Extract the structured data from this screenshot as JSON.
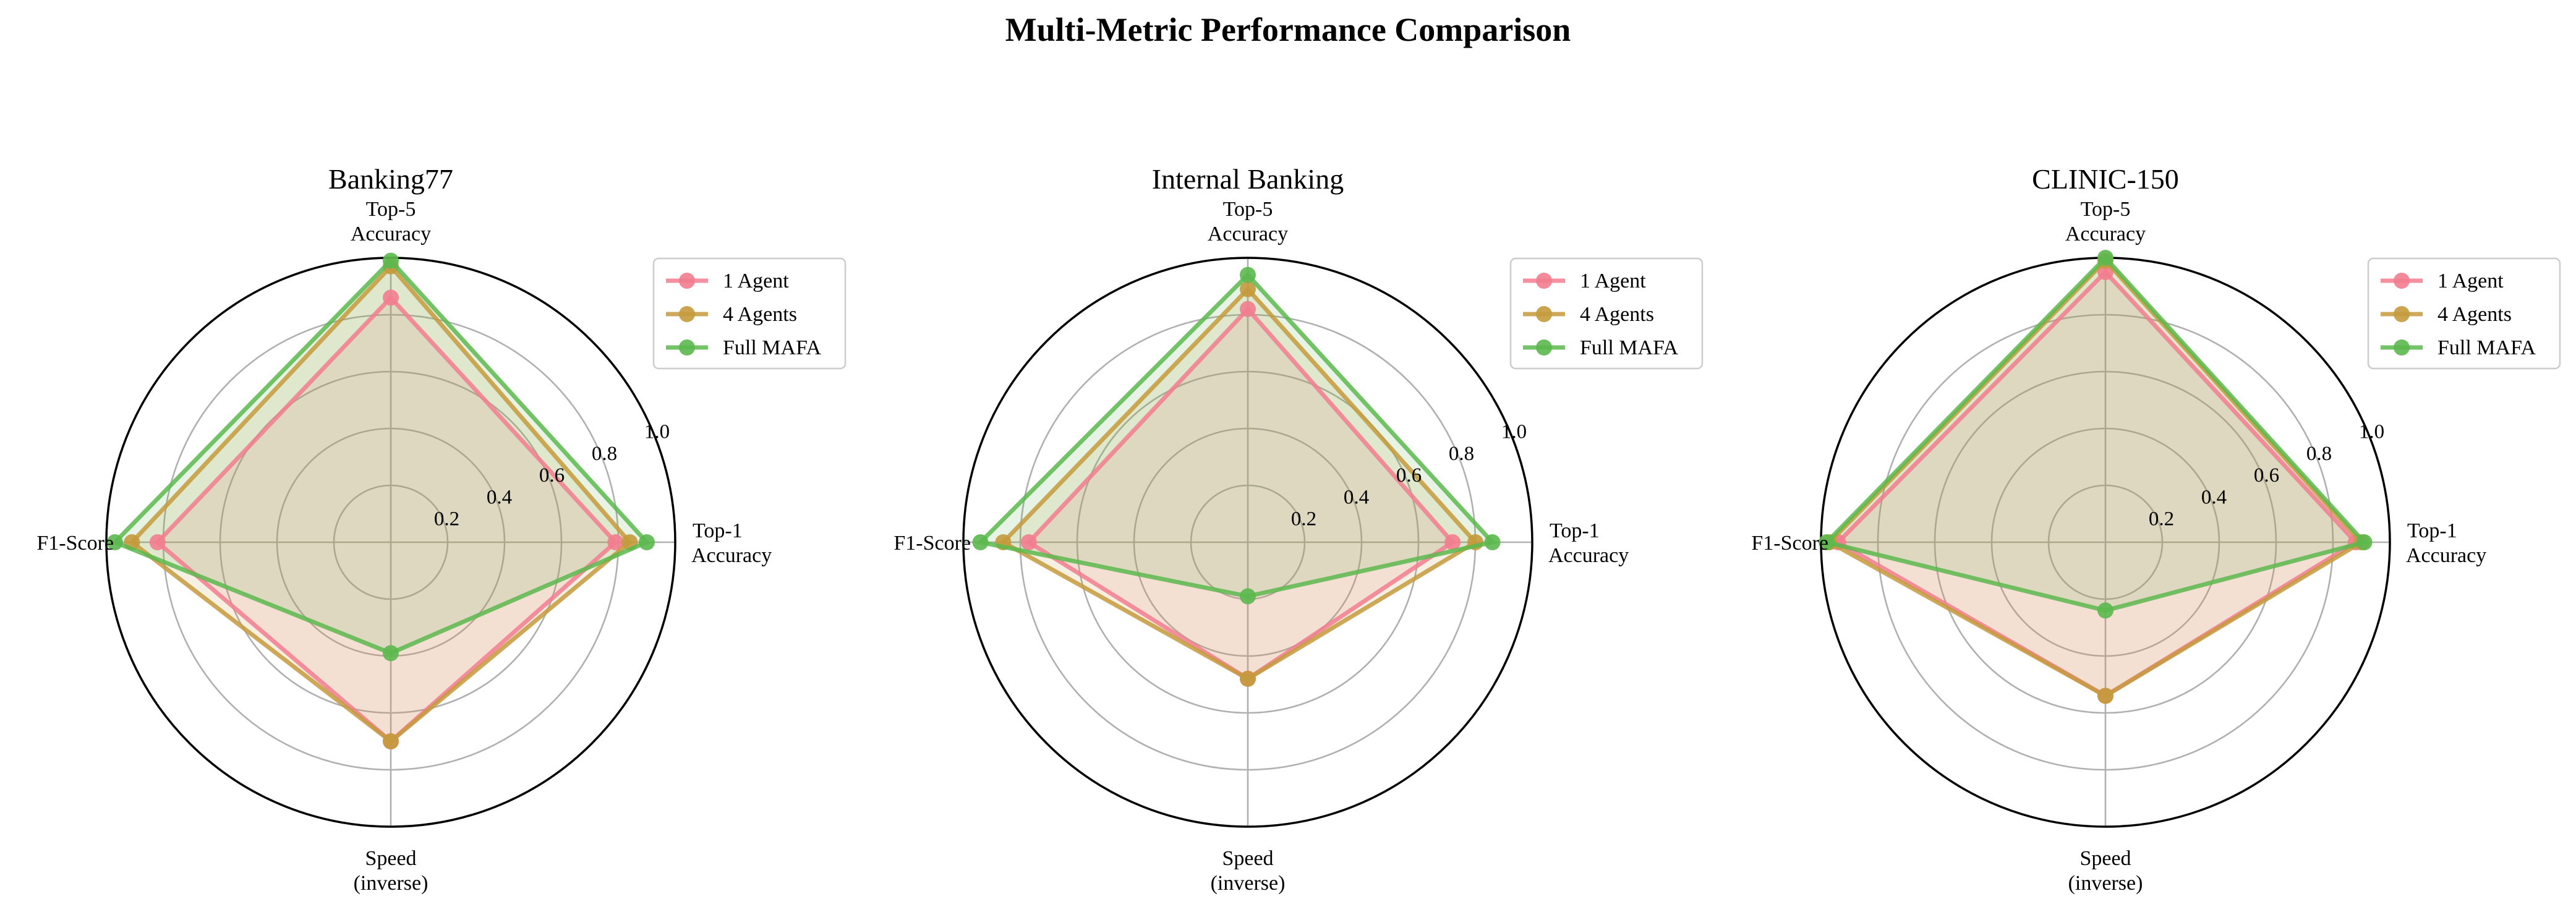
{
  "figure": {
    "title": "Multi-Metric Performance Comparison"
  },
  "colors": {
    "1 Agent": "#f27d8f",
    "4 Agents": "#c49a3c",
    "Full MAFA": "#5cb84e"
  },
  "chart_data": [
    {
      "type": "radar",
      "title": "Banking77",
      "axes": [
        "Top-1\nAccuracy",
        "Top-5\nAccuracy",
        "F1-Score",
        "Speed\n(inverse)"
      ],
      "radial_ticks": [
        "0.2",
        "0.4",
        "0.6",
        "0.8",
        "1.0"
      ],
      "rlim": [
        0,
        1.0
      ],
      "legend_position": "upper-right",
      "series": [
        {
          "name": "1 Agent",
          "values": [
            0.79,
            0.86,
            0.82,
            0.7
          ]
        },
        {
          "name": "4 Agents",
          "values": [
            0.84,
            0.97,
            0.91,
            0.7
          ]
        },
        {
          "name": "Full MAFA",
          "values": [
            0.9,
            0.99,
            0.97,
            0.39
          ]
        }
      ]
    },
    {
      "type": "radar",
      "title": "Internal Banking",
      "axes": [
        "Top-1\nAccuracy",
        "Top-5\nAccuracy",
        "F1-Score",
        "Speed\n(inverse)"
      ],
      "radial_ticks": [
        "0.2",
        "0.4",
        "0.6",
        "0.8",
        "1.0"
      ],
      "rlim": [
        0,
        1.0
      ],
      "legend_position": "upper-right",
      "series": [
        {
          "name": "1 Agent",
          "values": [
            0.72,
            0.82,
            0.77,
            0.48
          ]
        },
        {
          "name": "4 Agents",
          "values": [
            0.8,
            0.89,
            0.86,
            0.48
          ]
        },
        {
          "name": "Full MAFA",
          "values": [
            0.86,
            0.94,
            0.94,
            0.19
          ]
        }
      ]
    },
    {
      "type": "radar",
      "title": "CLINIC-150",
      "axes": [
        "Top-1\nAccuracy",
        "Top-5\nAccuracy",
        "F1-Score",
        "Speed\n(inverse)"
      ],
      "radial_ticks": [
        "0.2",
        "0.4",
        "0.6",
        "0.8",
        "1.0"
      ],
      "rlim": [
        0,
        1.0
      ],
      "legend_position": "upper-right",
      "series": [
        {
          "name": "1 Agent",
          "values": [
            0.88,
            0.95,
            0.94,
            0.54
          ]
        },
        {
          "name": "4 Agents",
          "values": [
            0.9,
            0.99,
            0.97,
            0.54
          ]
        },
        {
          "name": "Full MAFA",
          "values": [
            0.91,
            1.0,
            0.98,
            0.24
          ]
        }
      ]
    }
  ]
}
